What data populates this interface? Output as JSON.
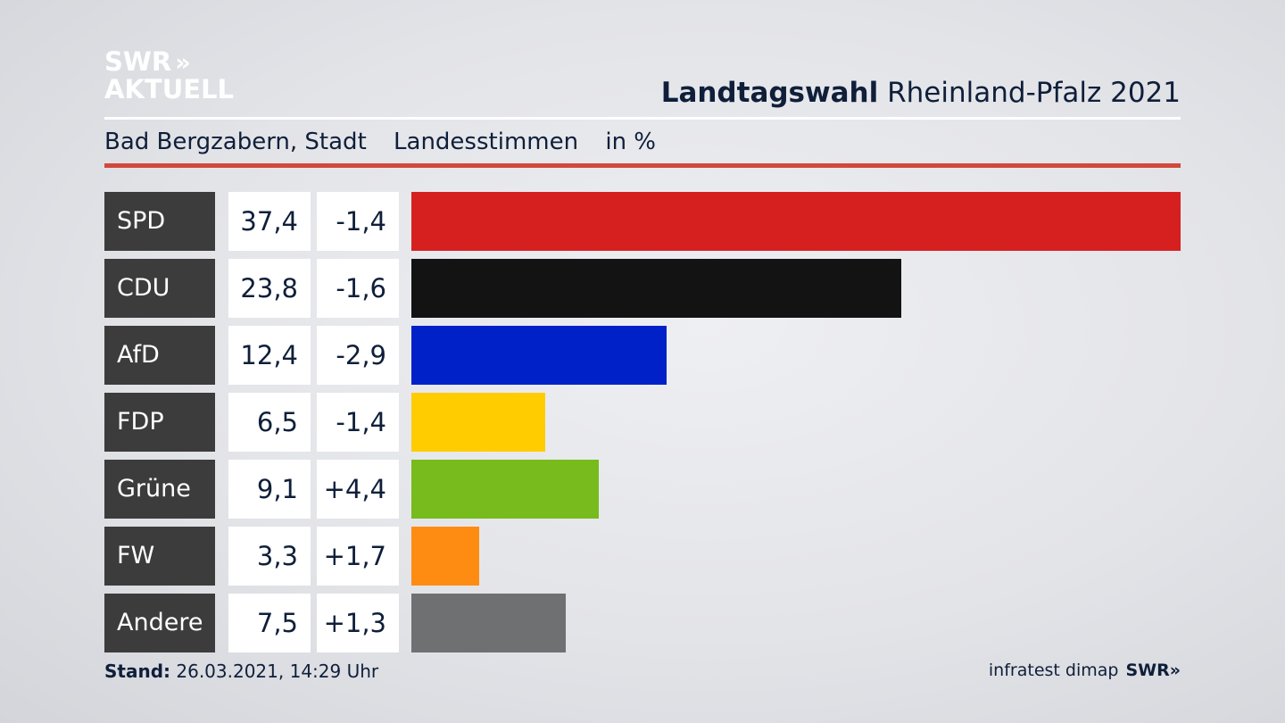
{
  "branding": {
    "logo_line1": "SWR",
    "logo_arrows": "»",
    "logo_line2": "AKTUELL",
    "footer_source": "infratest dimap",
    "footer_logo": "SWR»"
  },
  "header": {
    "title_bold": "Landtagswahl",
    "title_rest": " Rheinland-Pfalz 2021",
    "location": "Bad Bergzabern, Stadt",
    "vote_type": "Landesstimmen",
    "unit": "in %"
  },
  "footer": {
    "stand_label": "Stand:",
    "stand_value": " 26.03.2021, 14:29 Uhr"
  },
  "colors": {
    "accent_line": "#d2493b",
    "label_box": "#3c3c3c"
  },
  "chart_data": {
    "type": "bar",
    "orientation": "horizontal",
    "title": "Landtagswahl Rheinland-Pfalz 2021",
    "categories": [
      "SPD",
      "CDU",
      "AfD",
      "FDP",
      "Grüne",
      "FW",
      "Andere"
    ],
    "values": [
      37.4,
      23.8,
      12.4,
      6.5,
      9.1,
      3.3,
      7.5
    ],
    "value_labels": [
      "37,4",
      "23,8",
      "12,4",
      "6,5",
      "9,1",
      "3,3",
      "7,5"
    ],
    "changes": [
      -1.4,
      -1.6,
      -2.9,
      -1.4,
      4.4,
      1.7,
      1.3
    ],
    "change_labels": [
      "-1,4",
      "-1,6",
      "-2,9",
      "-1,4",
      "+4,4",
      "+1,7",
      "+1,3"
    ],
    "colors": [
      "#d62020",
      "#131313",
      "#0021c8",
      "#ffcc00",
      "#77bb1d",
      "#ff8c12",
      "#6f7072"
    ],
    "xlim": [
      0,
      37.4
    ],
    "grid": false,
    "legend": "none"
  }
}
